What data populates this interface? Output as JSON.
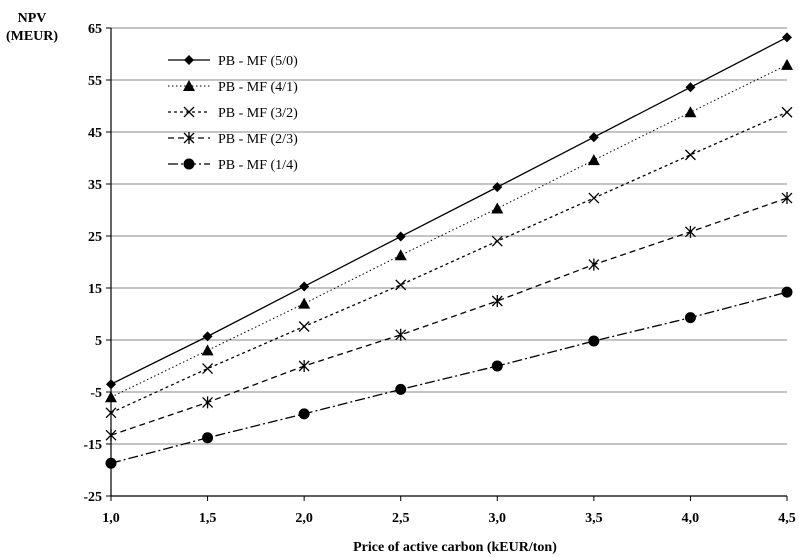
{
  "chart_data": {
    "type": "line",
    "title": "",
    "xlabel": "Price of active carbon  (kEUR/ton)",
    "ylabel_lines": [
      "NPV",
      "(MEUR)"
    ],
    "x": [
      1.0,
      1.5,
      2.0,
      2.5,
      3.0,
      3.5,
      4.0,
      4.5
    ],
    "x_tick_labels": [
      "1,0",
      "1,5",
      "2,0",
      "2,5",
      "3,0",
      "3,5",
      "4,0",
      "4,5"
    ],
    "xlim": [
      1.0,
      4.5
    ],
    "ylim": [
      -25,
      65
    ],
    "y_ticks": [
      -25,
      -15,
      -5,
      5,
      15,
      25,
      35,
      45,
      55,
      65
    ],
    "y_tick_labels": [
      "-25",
      "-15",
      "-5",
      "5",
      "15",
      "25",
      "35",
      "45",
      "55",
      "65"
    ],
    "grid": "horizontal",
    "legend_position": "top-left",
    "series": [
      {
        "name": "PB - MF (5/0)",
        "marker": "diamond",
        "line": "solid",
        "values": [
          -3.5,
          5.7,
          15.3,
          24.9,
          34.4,
          44.0,
          53.6,
          63.2
        ]
      },
      {
        "name": "PB - MF (4/1)",
        "marker": "triangle",
        "line": "dotted",
        "values": [
          -6.0,
          3.0,
          12.0,
          21.3,
          30.3,
          39.6,
          48.8,
          57.9
        ]
      },
      {
        "name": "PB - MF (3/2)",
        "marker": "x",
        "line": "short-dash",
        "values": [
          -9.0,
          -0.5,
          7.6,
          15.6,
          24.0,
          32.3,
          40.6,
          48.8
        ]
      },
      {
        "name": "PB - MF (2/3)",
        "marker": "asterisk",
        "line": "dash",
        "values": [
          -13.3,
          -7.0,
          0.0,
          6.0,
          12.5,
          19.5,
          25.8,
          32.3
        ]
      },
      {
        "name": "PB - MF (1/4)",
        "marker": "circle",
        "line": "dash-dot",
        "values": [
          -18.7,
          -13.8,
          -9.2,
          -4.5,
          0.0,
          4.8,
          9.3,
          14.2
        ]
      }
    ]
  }
}
